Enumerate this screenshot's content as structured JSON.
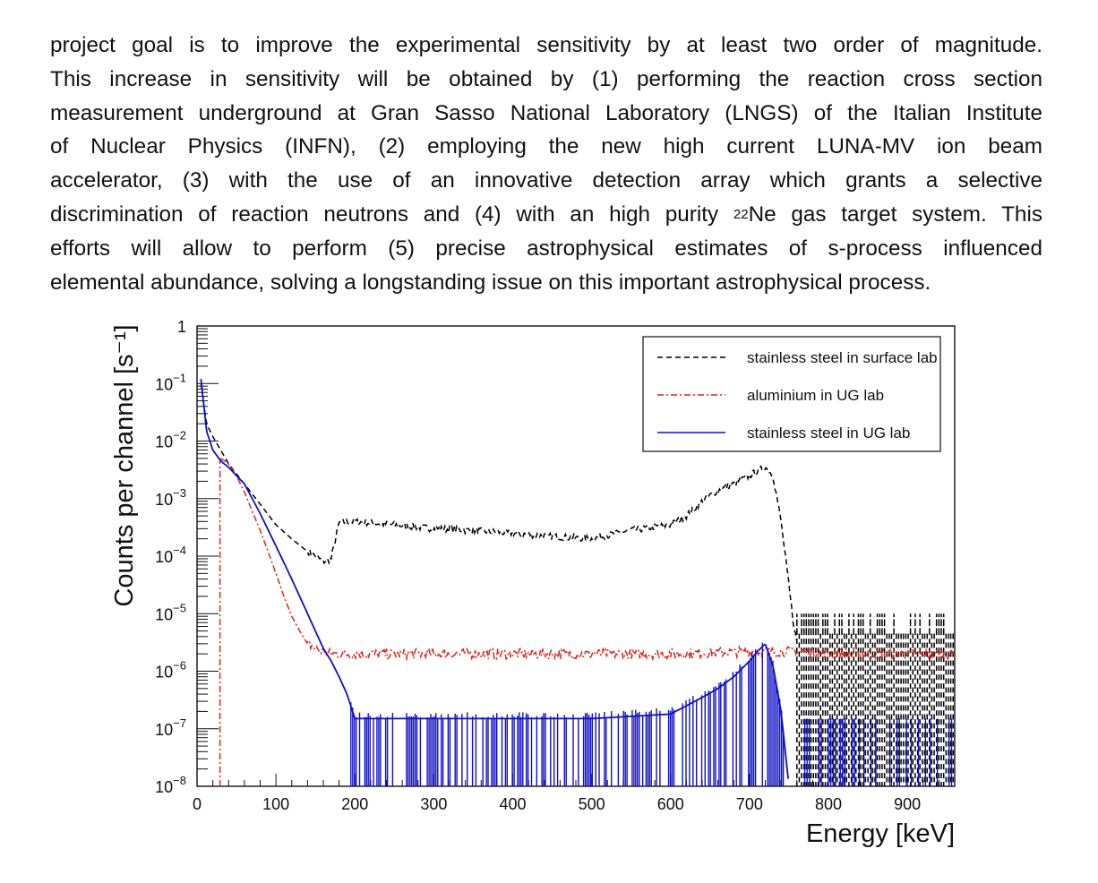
{
  "paragraph": {
    "line1": "project goal is to improve the experimental sensitivity by at least two order of magnitude.",
    "line2": "This increase in sensitivity will be obtained by (1) performing the reaction cross section",
    "line3": "measurement underground at Gran Sasso National Laboratory (LNGS) of the Italian Institute",
    "line4": "of Nuclear Physics (INFN), (2) employing the new high current LUNA-MV ion beam",
    "line5": "accelerator, (3) with the use of an innovative detection array which grants a selective",
    "line6_pre": "discrimination of reaction neutrons and (4) with an high purity ",
    "line6_sup": "22",
    "line6_post": "Ne gas target system. This",
    "line7": "efforts will allow to perform (5) precise astrophysical estimates of s-process influenced",
    "line8": "elemental abundance, solving a longstanding issue on this important astrophysical process."
  },
  "chart_data": {
    "type": "line",
    "title": "",
    "xlabel": "Energy [keV]",
    "ylabel": "Counts per channel [s⁻¹]",
    "xlim": [
      0,
      960
    ],
    "ylim": [
      1e-08,
      1
    ],
    "yscale": "log",
    "xticks": [
      0,
      100,
      200,
      300,
      400,
      500,
      600,
      700,
      800,
      900
    ],
    "xtick_labels": [
      "0",
      "100",
      "200",
      "300",
      "400",
      "500",
      "600",
      "700",
      "800",
      "900"
    ],
    "ytick_labels": [
      {
        "base": "1",
        "exp": ""
      },
      {
        "base": "10",
        "exp": "−1"
      },
      {
        "base": "10",
        "exp": "−2"
      },
      {
        "base": "10",
        "exp": "−3"
      },
      {
        "base": "10",
        "exp": "−4"
      },
      {
        "base": "10",
        "exp": "−5"
      },
      {
        "base": "10",
        "exp": "−6"
      },
      {
        "base": "10",
        "exp": "−7"
      },
      {
        "base": "10",
        "exp": "−8"
      }
    ],
    "yticks": [
      1,
      0.1,
      0.01,
      0.001,
      0.0001,
      1e-05,
      1e-06,
      1e-07,
      1e-08
    ],
    "legend_position": "top-right",
    "series": [
      {
        "name": "stainless steel in surface lab",
        "color": "#000000",
        "dash": "dashed",
        "x": [
          5,
          8,
          12,
          20,
          30,
          40,
          60,
          80,
          100,
          120,
          140,
          150,
          160,
          170,
          180,
          200,
          250,
          300,
          350,
          400,
          450,
          500,
          550,
          600,
          620,
          640,
          660,
          680,
          700,
          710,
          720,
          730,
          740,
          750,
          755,
          760
        ],
        "y": [
          0.1,
          0.05,
          0.02,
          0.012,
          0.007,
          0.004,
          0.0018,
          0.0008,
          0.00035,
          0.0002,
          0.00012,
          0.0001,
          8e-05,
          9e-05,
          0.00038,
          0.0004,
          0.00035,
          0.0003,
          0.00028,
          0.00025,
          0.00022,
          0.0002,
          0.00028,
          0.00035,
          0.0005,
          0.0009,
          0.0014,
          0.0018,
          0.0025,
          0.003,
          0.0035,
          0.0025,
          0.0004,
          3e-05,
          8e-06,
          3e-06
        ]
      },
      {
        "name": "aluminium in UG lab",
        "color": "#e0241b",
        "dash": "dash-dot",
        "x": [
          30,
          35,
          40,
          50,
          60,
          70,
          80,
          90,
          100,
          110,
          120,
          130,
          140,
          150,
          160,
          170,
          200,
          300,
          400,
          500,
          600,
          700,
          760,
          800,
          900,
          960
        ],
        "y": [
          0.005,
          0.0045,
          0.004,
          0.0025,
          0.0013,
          0.0006,
          0.00028,
          0.00012,
          5e-05,
          2e-05,
          9e-06,
          5e-06,
          3e-06,
          2.5e-06,
          2.2e-06,
          2e-06,
          2e-06,
          2e-06,
          2e-06,
          2e-06,
          2e-06,
          2.2e-06,
          2.2e-06,
          2.1e-06,
          2e-06,
          2e-06
        ]
      },
      {
        "name": "stainless steel in UG lab",
        "color": "#1010c8",
        "dash": "solid",
        "x": [
          5,
          8,
          12,
          20,
          30,
          40,
          60,
          80,
          100,
          120,
          130,
          140,
          150,
          160,
          170,
          180,
          190,
          200,
          300,
          400,
          500,
          600,
          640,
          660,
          680,
          700,
          710,
          720,
          730,
          740,
          750
        ],
        "y": [
          0.12,
          0.05,
          0.015,
          0.007,
          0.0045,
          0.0035,
          0.0018,
          0.00055,
          0.00015,
          4e-05,
          2e-05,
          1e-05,
          5e-06,
          2.5e-06,
          1.5e-06,
          8e-07,
          4e-07,
          1.5e-07,
          1.5e-07,
          1.5e-07,
          1.5e-07,
          1.8e-07,
          3.5e-07,
          5e-07,
          8e-07,
          1.5e-06,
          2.2e-06,
          3e-06,
          1.2e-06,
          2e-07,
          1e-08
        ]
      }
    ]
  }
}
